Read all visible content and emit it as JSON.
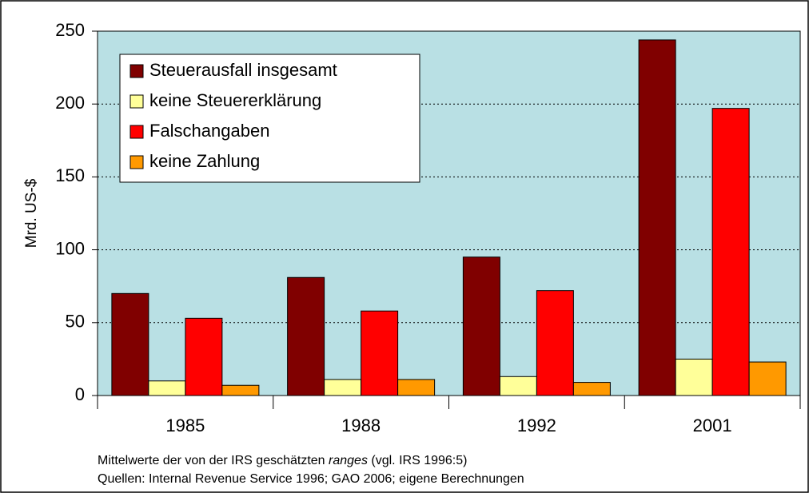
{
  "chart_data": {
    "type": "bar",
    "y_label": "Mrd. US-$",
    "categories": [
      "1985",
      "1988",
      "1992",
      "2001"
    ],
    "series": [
      {
        "name": "Steuerausfall insgesamt",
        "color": "#800000",
        "values": [
          70,
          81,
          95,
          244
        ]
      },
      {
        "name": "keine Steuererklärung",
        "color": "#ffff99",
        "values": [
          10,
          11,
          13,
          25
        ]
      },
      {
        "name": "Falschangaben",
        "color": "#ff0000",
        "values": [
          53,
          58,
          72,
          197
        ]
      },
      {
        "name": "keine Zahlung",
        "color": "#ff9900",
        "values": [
          7,
          11,
          9,
          23
        ]
      }
    ],
    "ylim": [
      0,
      250
    ],
    "yticks": [
      0,
      50,
      100,
      150,
      200,
      250
    ],
    "grid": true,
    "legend": "upper left",
    "notes": [
      [
        "Mittelwerte der von der IRS geschätzten ",
        "ranges",
        " (vgl. IRS 1996:5)"
      ],
      [
        "Quellen: Internal Revenue Service 1996; GAO 2006; eigene Berechnungen"
      ]
    ]
  }
}
